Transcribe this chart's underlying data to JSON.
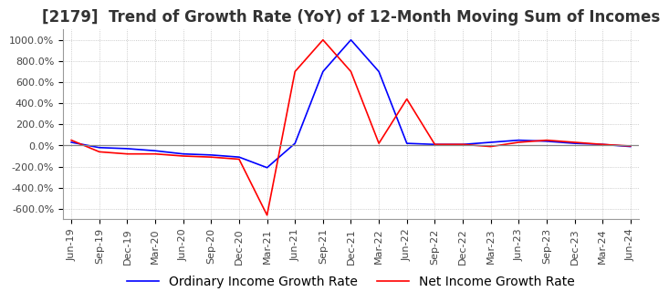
{
  "title": "[2179]  Trend of Growth Rate (YoY) of 12-Month Moving Sum of Incomes",
  "title_fontsize": 12,
  "ylim": [
    -700,
    1100
  ],
  "yticks": [
    -600,
    -400,
    -200,
    0,
    200,
    400,
    600,
    800,
    1000
  ],
  "ytick_labels": [
    "-600.0%",
    "-400.0%",
    "-200.0%",
    "0.0%",
    "200.0%",
    "400.0%",
    "600.0%",
    "800.0%",
    "1000.0%"
  ],
  "x_labels": [
    "Jun-19",
    "Sep-19",
    "Dec-19",
    "Mar-20",
    "Jun-20",
    "Sep-20",
    "Dec-20",
    "Mar-21",
    "Jun-21",
    "Sep-21",
    "Dec-21",
    "Mar-22",
    "Jun-22",
    "Sep-22",
    "Dec-22",
    "Mar-23",
    "Jun-23",
    "Sep-23",
    "Dec-23",
    "Mar-24",
    "Jun-24"
  ],
  "ordinary_income": [
    30,
    -20,
    -30,
    -50,
    -80,
    -90,
    -110,
    -210,
    20,
    700,
    1000,
    700,
    20,
    10,
    10,
    30,
    50,
    40,
    20,
    10,
    -10
  ],
  "net_income": [
    50,
    -60,
    -80,
    -80,
    -100,
    -110,
    -130,
    -660,
    700,
    1000,
    700,
    20,
    440,
    10,
    10,
    -10,
    30,
    50,
    30,
    10,
    -5
  ],
  "line_color_ordinary": "#0000FF",
  "line_color_net": "#FF0000",
  "background_color": "#FFFFFF",
  "grid_color": "#BBBBBB",
  "legend_ordinary": "Ordinary Income Growth Rate",
  "legend_net": "Net Income Growth Rate",
  "legend_fontsize": 10,
  "tick_fontsize": 8
}
